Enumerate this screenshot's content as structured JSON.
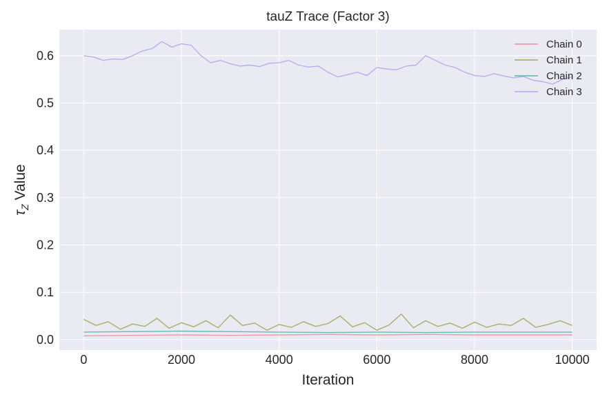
{
  "chart_data": {
    "type": "line",
    "title": "tauZ Trace (Factor 3)",
    "xlabel": "Iteration",
    "ylabel_symbol": "τ",
    "ylabel_subscript": "Z",
    "ylabel_suffix": " Value",
    "xlim": [
      -500,
      10500
    ],
    "ylim": [
      -0.022,
      0.655
    ],
    "x_ticks": [
      0,
      2000,
      4000,
      6000,
      8000,
      10000
    ],
    "y_ticks": [
      0.0,
      0.1,
      0.2,
      0.3,
      0.4,
      0.5,
      0.6
    ],
    "x_tick_labels": [
      "0",
      "2000",
      "4000",
      "6000",
      "8000",
      "10000"
    ],
    "y_tick_labels": [
      "0.0",
      "0.1",
      "0.2",
      "0.3",
      "0.4",
      "0.5",
      "0.6"
    ],
    "grid": true,
    "legend_position": "top-right",
    "series": [
      {
        "name": "Chain 0",
        "color": "#f28e9e",
        "x": [
          0,
          1000,
          2000,
          3000,
          4000,
          5000,
          6000,
          7000,
          8000,
          9000,
          10000
        ],
        "values": [
          0.008,
          0.009,
          0.01,
          0.009,
          0.01,
          0.011,
          0.01,
          0.011,
          0.01,
          0.01,
          0.01
        ]
      },
      {
        "name": "Chain 1",
        "color": "#9aab55",
        "x": [
          0,
          250,
          500,
          750,
          1000,
          1250,
          1500,
          1750,
          2000,
          2250,
          2500,
          2750,
          3000,
          3250,
          3500,
          3750,
          4000,
          4250,
          4500,
          4750,
          5000,
          5250,
          5500,
          5750,
          6000,
          6250,
          6500,
          6750,
          7000,
          7250,
          7500,
          7750,
          8000,
          8250,
          8500,
          8750,
          9000,
          9250,
          9500,
          9750,
          10000
        ],
        "values": [
          0.043,
          0.03,
          0.038,
          0.022,
          0.033,
          0.028,
          0.045,
          0.024,
          0.036,
          0.027,
          0.04,
          0.025,
          0.052,
          0.03,
          0.035,
          0.02,
          0.032,
          0.026,
          0.038,
          0.028,
          0.034,
          0.05,
          0.027,
          0.036,
          0.02,
          0.031,
          0.054,
          0.025,
          0.04,
          0.028,
          0.035,
          0.024,
          0.037,
          0.026,
          0.033,
          0.03,
          0.045,
          0.026,
          0.032,
          0.04,
          0.03
        ]
      },
      {
        "name": "Chain 2",
        "color": "#5bb4a8",
        "x": [
          0,
          1000,
          2000,
          3000,
          4000,
          5000,
          6000,
          7000,
          8000,
          9000,
          10000
        ],
        "values": [
          0.016,
          0.017,
          0.018,
          0.017,
          0.016,
          0.015,
          0.016,
          0.015,
          0.016,
          0.016,
          0.016
        ]
      },
      {
        "name": "Chain 3",
        "color": "#b4a6ee",
        "x": [
          0,
          200,
          400,
          600,
          800,
          1000,
          1200,
          1400,
          1600,
          1800,
          2000,
          2200,
          2400,
          2600,
          2800,
          3000,
          3200,
          3400,
          3600,
          3800,
          4000,
          4200,
          4400,
          4600,
          4800,
          5000,
          5200,
          5400,
          5600,
          5800,
          6000,
          6200,
          6400,
          6600,
          6800,
          7000,
          7200,
          7400,
          7600,
          7800,
          8000,
          8200,
          8400,
          8600,
          8800,
          9000,
          9200,
          9400,
          9600,
          9800,
          10000
        ],
        "values": [
          0.6,
          0.597,
          0.59,
          0.593,
          0.592,
          0.6,
          0.61,
          0.615,
          0.63,
          0.618,
          0.625,
          0.622,
          0.6,
          0.585,
          0.59,
          0.583,
          0.578,
          0.58,
          0.577,
          0.584,
          0.585,
          0.59,
          0.58,
          0.576,
          0.578,
          0.565,
          0.555,
          0.56,
          0.565,
          0.558,
          0.575,
          0.572,
          0.57,
          0.578,
          0.58,
          0.6,
          0.59,
          0.58,
          0.575,
          0.565,
          0.558,
          0.556,
          0.562,
          0.557,
          0.553,
          0.556,
          0.548,
          0.545,
          0.54,
          0.55,
          0.555
        ]
      }
    ]
  }
}
